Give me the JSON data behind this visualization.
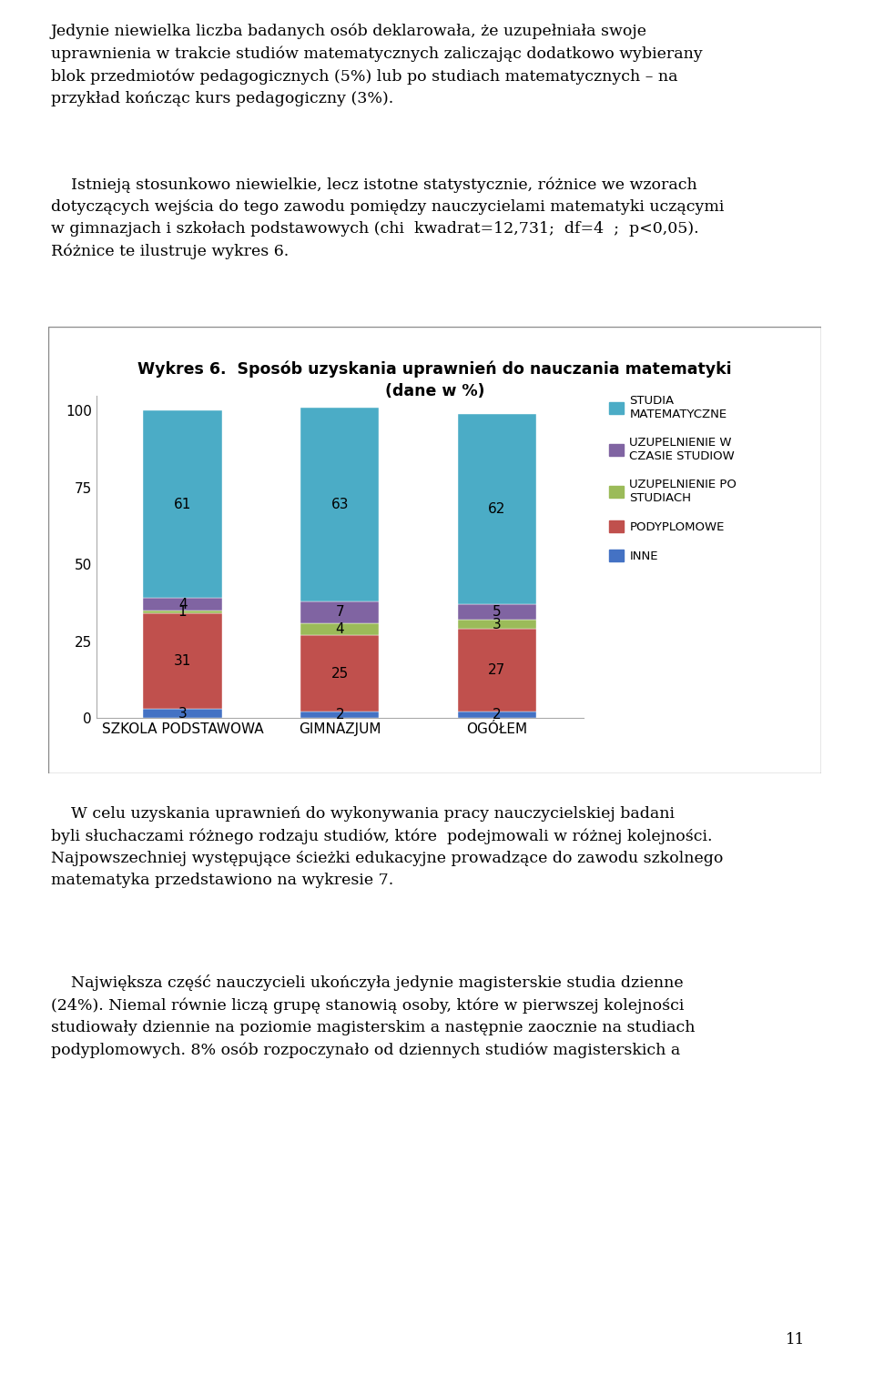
{
  "title_line1": "Wykres 6.  Sposób uzyskania uprawnień do nauczania matematyki",
  "title_line2": "(dane w %)",
  "categories": [
    "SZKOLA PODSTAWOWA",
    "GIMNAZJUM",
    "OGÓŁEM"
  ],
  "series": {
    "INNE": [
      3,
      2,
      2
    ],
    "PODYPLOMOWE": [
      31,
      25,
      27
    ],
    "UZUPELNIENIE PO STUDIACH": [
      1,
      4,
      3
    ],
    "UZUPELNIENIE W CZASIE STUDIOW": [
      4,
      7,
      5
    ],
    "STUDIA MATEMATYCZNE": [
      61,
      63,
      62
    ]
  },
  "colors": {
    "INNE": "#4472C4",
    "PODYPLOMOWE": "#C0504D",
    "UZUPELNIENIE PO STUDIACH": "#9BBB59",
    "UZUPELNIENIE W CZASIE STUDIOW": "#8064A2",
    "STUDIA MATEMATYCZNE": "#4BACC6"
  },
  "legend_labels": {
    "STUDIA MATEMATYCZNE": "STUDIA\nMATEMATYCZNE",
    "UZUPELNIENIE W CZASIE STUDIOW": "UZUPELNIENIE W\nCZASIE STUDIOW",
    "UZUPELNIENIE PO STUDIACH": "UZUPELNIENIE PO\nSTUDIACH",
    "PODYPLOMOWE": "PODYPLOMOWE",
    "INNE": "INNE"
  },
  "ylim": [
    0,
    105
  ],
  "yticks": [
    0,
    25,
    50,
    75,
    100
  ],
  "background_color": "#FFFFFF",
  "page_number": "11",
  "para1": "Jedynie niewielka liczba badanych osób deklarowała, że uzupełniała swoje\nuprawnienia w trakcie studiów matematycznych zaliczając dodatkowo wybierany\nblok przedmiotów pedagogicznych (5%) lub po studiach matematycznych – na\nprzykład kończąc kurs pedagogiczny (3%).",
  "para2_indent": "    Istnieją stosunkowo niewielkie, lecz istotne statystycznie, różnice we wzorach\ndotyczących wejścia do tego zawodu pomiędzy nauczycielami matematyki uczącymi\nw gimnazjach i szkołach podstawowych (chi  kwadrat=12,731;  df=4  ;  p<0,05).\nRóżnice te ilustruje wykres 6.",
  "para3_indent": "    W celu uzyskania uprawnień do wykonywania pracy nauczycielskiej badani\nbyli słuchaczami różnego rodzaju studiów, które  podejmowali w różnej kolejności.\nNajpowszechniej występujące ścieżki edukacyjne prowadzące do zawodu szkolnego\nmatematyka przedstawiono na wykresie 7.",
  "para4_indent": "    Największa część nauczycieli ukończyła jedynie magisterskie studia dzienne\n(24%). Niemal równie liczą grupę stanowią osoby, które w pierwszej kolejności\nstudiowały dziennie na poziomie magisterskim a następnie zaocznie na studiach\npodyplomowych. 8% osób rozpoczynało od dziennych studiów magisterskich a"
}
